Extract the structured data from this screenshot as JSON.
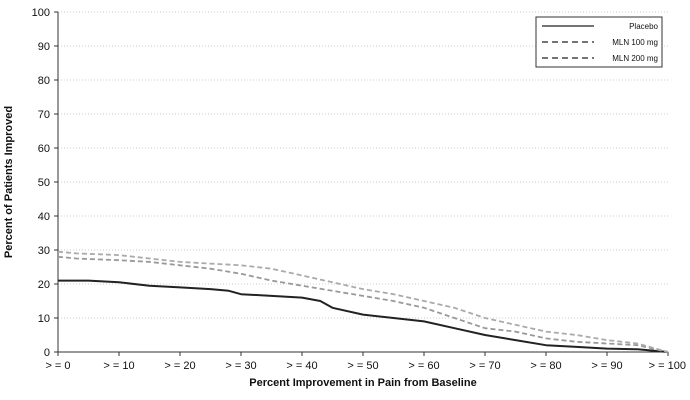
{
  "chart_data": {
    "type": "line",
    "title": "",
    "xlabel": "Percent Improvement in Pain from Baseline",
    "ylabel": "Percent of Patients Improved",
    "ylim": [
      0,
      100
    ],
    "yticks": [
      0,
      10,
      20,
      30,
      40,
      50,
      60,
      70,
      80,
      90,
      100
    ],
    "xlim": [
      0,
      100
    ],
    "xticks": [
      0,
      10,
      20,
      30,
      40,
      50,
      60,
      70,
      80,
      90,
      100
    ],
    "xtick_labels": [
      "> = 0",
      "> = 10",
      "> = 20",
      "> = 30",
      "> = 40",
      "> = 50",
      "> = 60",
      "> = 70",
      "> = 80",
      "> = 90",
      "> = 100"
    ],
    "legend": {
      "position": "top-right"
    },
    "series": [
      {
        "name": "Placebo",
        "style": "solid",
        "color": "#222222",
        "x": [
          0,
          5,
          10,
          15,
          20,
          25,
          28,
          30,
          35,
          40,
          43,
          45,
          50,
          55,
          60,
          65,
          70,
          75,
          80,
          85,
          90,
          95,
          100
        ],
        "y": [
          21,
          21,
          20.5,
          19.5,
          19,
          18.5,
          18,
          17,
          16.5,
          16,
          15,
          13,
          11,
          10,
          9,
          7,
          5,
          3.5,
          2,
          1.5,
          1,
          0.8,
          0
        ]
      },
      {
        "name": "MLN 100 mg",
        "style": "dashed",
        "color": "#999999",
        "x": [
          0,
          3,
          10,
          15,
          20,
          25,
          30,
          35,
          40,
          45,
          50,
          55,
          60,
          65,
          70,
          75,
          80,
          85,
          90,
          95,
          100
        ],
        "y": [
          28,
          27.5,
          27,
          26.5,
          25.5,
          24.5,
          23,
          21,
          19.5,
          18,
          16.5,
          15,
          13,
          10,
          7,
          6,
          4,
          3,
          2.5,
          2,
          0
        ]
      },
      {
        "name": "MLN 200 mg",
        "style": "dashed",
        "color": "#aaaaaa",
        "x": [
          0,
          3,
          10,
          15,
          20,
          25,
          30,
          35,
          40,
          45,
          50,
          55,
          60,
          65,
          70,
          75,
          80,
          85,
          90,
          95,
          100
        ],
        "y": [
          29.5,
          29,
          28.5,
          27.5,
          26.5,
          26,
          25.5,
          24.5,
          22.5,
          20.5,
          18.5,
          17,
          15,
          13,
          10,
          8,
          6,
          5,
          3.5,
          2.5,
          0
        ]
      }
    ]
  }
}
